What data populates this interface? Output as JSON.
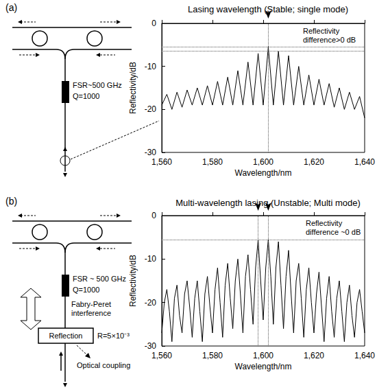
{
  "figure": {
    "panels": [
      {
        "label": "(a)",
        "diagram": {
          "fsr": "FSR~500 GHz",
          "q": "Q=1000"
        }
      },
      {
        "label": "(b)",
        "diagram": {
          "fsr": "FSR ~ 500 GHz",
          "q": "Q=1000",
          "fp": "Fabry-Peret interference",
          "reflection": "Reflection",
          "r": "R=5×10⁻³",
          "coupling": "Optical coupling"
        }
      }
    ]
  },
  "chart_data": [
    {
      "type": "line",
      "title": "Lasing wavelength (Stable; single mode)",
      "x_label": "Wavelength/nm",
      "y_label": "Reflectivity/dB",
      "annotations": [
        "Reflectivity difference>0 dB"
      ],
      "lasing_wavelengths": [
        1602
      ],
      "reflectivity_levels": [
        -5.5,
        -6.5
      ],
      "color": "#000000",
      "grid": false,
      "xlim": [
        1560,
        1640
      ],
      "xticks": [
        1560,
        1580,
        1600,
        1620,
        1640
      ],
      "ylim": [
        -30,
        0
      ],
      "yticks": [
        -30,
        -20,
        -10,
        0
      ],
      "x": [
        1560,
        1562,
        1564,
        1566,
        1568,
        1570,
        1572,
        1574,
        1576,
        1578,
        1580,
        1582,
        1584,
        1586,
        1588,
        1590,
        1592,
        1594,
        1596,
        1598,
        1600,
        1602,
        1604,
        1606,
        1608,
        1610,
        1612,
        1614,
        1616,
        1618,
        1620,
        1622,
        1624,
        1626,
        1628,
        1630,
        1632,
        1634,
        1636,
        1638,
        1640
      ],
      "values": [
        -19,
        -16.5,
        -20,
        -16,
        -19.5,
        -15.5,
        -19,
        -15,
        -19,
        -14.5,
        -19,
        -13.5,
        -19,
        -12.5,
        -19,
        -11,
        -19,
        -9,
        -19,
        -7,
        -19,
        -5.5,
        -19,
        -6.5,
        -19,
        -7.5,
        -19,
        -10,
        -19,
        -12,
        -19,
        -13,
        -19,
        -14,
        -19.5,
        -15,
        -20,
        -16,
        -20,
        -17,
        -22
      ]
    },
    {
      "type": "line",
      "title": "Multi-wavelength lasing (Unstable; Multi mode)",
      "x_label": "Wavelength/nm",
      "y_label": "Reflectivity/dB",
      "annotations": [
        "Reflectivity difference ~0 dB"
      ],
      "lasing_wavelengths": [
        1598,
        1602
      ],
      "reflectivity_levels": [
        -5.5
      ],
      "color": "#000000",
      "grid": false,
      "xlim": [
        1560,
        1640
      ],
      "xticks": [
        1560,
        1580,
        1600,
        1620,
        1640
      ],
      "ylim": [
        -30,
        0
      ],
      "yticks": [
        -30,
        -20,
        -10,
        0
      ],
      "x": [
        1560,
        1561,
        1562,
        1563,
        1564,
        1565,
        1566,
        1567,
        1568,
        1569,
        1570,
        1571,
        1572,
        1573,
        1574,
        1575,
        1576,
        1577,
        1578,
        1579,
        1580,
        1581,
        1582,
        1583,
        1584,
        1585,
        1586,
        1587,
        1588,
        1589,
        1590,
        1591,
        1592,
        1593,
        1594,
        1595,
        1596,
        1597,
        1598,
        1599,
        1600,
        1601,
        1602,
        1603,
        1604,
        1605,
        1606,
        1607,
        1608,
        1609,
        1610,
        1611,
        1612,
        1613,
        1614,
        1615,
        1616,
        1617,
        1618,
        1619,
        1620,
        1621,
        1622,
        1623,
        1624,
        1625,
        1626,
        1627,
        1628,
        1629,
        1630,
        1631,
        1632,
        1633,
        1634,
        1635,
        1636,
        1637,
        1638,
        1639,
        1640
      ],
      "values": [
        -27,
        -20,
        -17,
        -22,
        -29,
        -19,
        -16,
        -23,
        -27,
        -18,
        -15,
        -21,
        -28,
        -19,
        -15,
        -22,
        -29,
        -18,
        -14,
        -21,
        -27,
        -17,
        -12,
        -20,
        -28,
        -16,
        -11,
        -19,
        -26,
        -15,
        -10,
        -18,
        -27,
        -14,
        -9,
        -17,
        -25,
        -12,
        -5.5,
        -15,
        -24,
        -12,
        -5.5,
        -14,
        -25,
        -12,
        -6,
        -16,
        -26,
        -14,
        -8,
        -18,
        -27,
        -15,
        -11,
        -19,
        -28,
        -17,
        -12,
        -20,
        -27,
        -18,
        -13,
        -21,
        -29,
        -19,
        -14,
        -22,
        -28,
        -19,
        -15,
        -22,
        -29,
        -20,
        -16,
        -23,
        -28,
        -20,
        -17,
        -22,
        -27
      ]
    }
  ]
}
